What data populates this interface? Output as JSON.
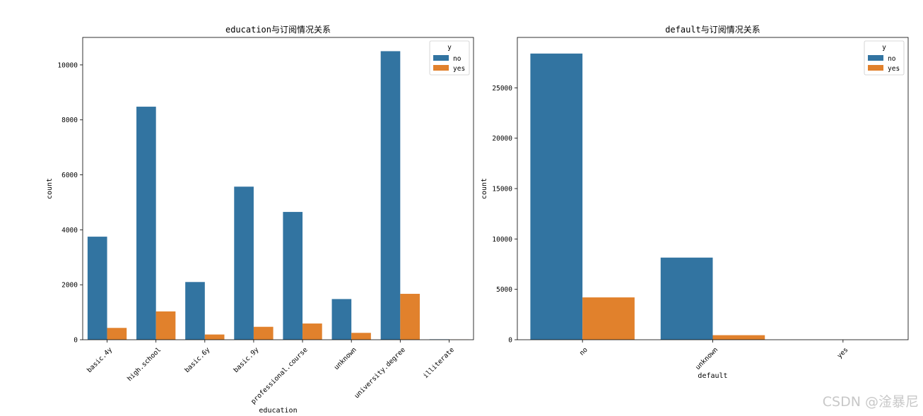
{
  "colors": {
    "no": "#3274a1",
    "yes": "#e1812c"
  },
  "chart_data": [
    {
      "type": "bar",
      "title": "education与订阅情况关系",
      "xlabel": "education",
      "ylabel": "count",
      "categories": [
        "basic.4y",
        "high.school",
        "basic.6y",
        "basic.9y",
        "professional.course",
        "unknown",
        "university.degree",
        "illiterate"
      ],
      "series": [
        {
          "name": "no",
          "values": [
            3750,
            8480,
            2100,
            5570,
            4650,
            1480,
            10500,
            15
          ]
        },
        {
          "name": "yes",
          "values": [
            430,
            1030,
            190,
            470,
            590,
            250,
            1670,
            4
          ]
        }
      ],
      "ylim": [
        0,
        11000
      ],
      "yticks": [
        0,
        2000,
        4000,
        6000,
        8000,
        10000
      ],
      "legend": {
        "title": "y",
        "placement": "top-right",
        "entries": [
          "no",
          "yes"
        ]
      },
      "grid": false
    },
    {
      "type": "bar",
      "title": "default与订阅情况关系",
      "xlabel": "default",
      "ylabel": "count",
      "categories": [
        "no",
        "unknown",
        "yes"
      ],
      "series": [
        {
          "name": "no",
          "values": [
            28400,
            8150,
            3
          ]
        },
        {
          "name": "yes",
          "values": [
            4200,
            450,
            0
          ]
        }
      ],
      "ylim": [
        0,
        30000
      ],
      "yticks": [
        0,
        5000,
        10000,
        15000,
        20000,
        25000
      ],
      "legend": {
        "title": "y",
        "placement": "top-right",
        "entries": [
          "no",
          "yes"
        ]
      },
      "grid": false
    }
  ],
  "watermark": "CSDN @淦暴尼"
}
